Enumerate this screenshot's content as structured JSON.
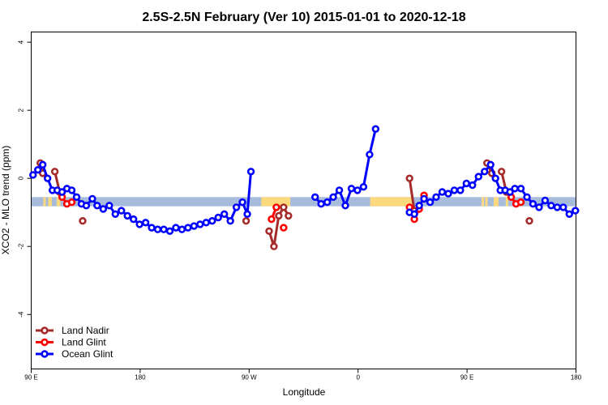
{
  "chart_data": {
    "type": "line",
    "title": "2.5S-2.5N February (Ver 10)   2015-01-01 to 2020-12-18",
    "xlabel": "Longitude",
    "ylabel": "XCO2 - MLO trend (ppm)",
    "xlim": [
      -90,
      360
    ],
    "ylim": [
      -5.6,
      4.3
    ],
    "x_ticks": [
      {
        "value": -90,
        "label": "90 E"
      },
      {
        "value": 0,
        "label": "180"
      },
      {
        "value": 90,
        "label": "90 W"
      },
      {
        "value": 180,
        "label": "0"
      },
      {
        "value": 270,
        "label": "90 E"
      },
      {
        "value": 360,
        "label": "180"
      }
    ],
    "y_ticks": [
      {
        "value": 4,
        "label": "4"
      },
      {
        "value": 2,
        "label": "2"
      },
      {
        "value": 0,
        "label": "0"
      },
      {
        "value": -2,
        "label": "-2"
      },
      {
        "value": -4,
        "label": "-4"
      }
    ],
    "land_band": {
      "y_range": [
        -0.82,
        -0.55
      ],
      "ocean_color": "#a7bcdd",
      "land_color": "#fcd97d",
      "land_segments": [
        [
          -80,
          -78
        ],
        [
          -76,
          -73
        ],
        [
          -69,
          -66
        ],
        [
          100,
          124
        ],
        [
          190,
          225
        ],
        [
          282,
          284
        ],
        [
          285,
          287
        ],
        [
          292,
          296
        ],
        [
          302,
          304
        ]
      ]
    },
    "series": [
      {
        "name": "Land Nadir",
        "color": "#a52a2a",
        "segments": [
          [
            [
              -82.5,
              0.45
            ],
            [
              -80.5,
              0.15
            ]
          ],
          [
            [
              -70.5,
              0.2
            ],
            [
              -66.5,
              -0.4
            ]
          ],
          [
            [
              -47.5,
              -1.25
            ]
          ],
          [
            [
              87.5,
              -1.25
            ]
          ],
          [
            [
              106.5,
              -1.55
            ],
            [
              110.5,
              -2.0
            ],
            [
              114.5,
              -1.1
            ],
            [
              118.5,
              -0.85
            ],
            [
              122.5,
              -1.1
            ]
          ],
          [
            [
              222.5,
              0.0
            ],
            [
              226.5,
              -0.95
            ]
          ],
          [
            [
              286.5,
              0.45
            ],
            [
              290.5,
              0.15
            ]
          ],
          [
            [
              298.5,
              0.2
            ],
            [
              302.5,
              -0.4
            ]
          ],
          [
            [
              321.5,
              -1.25
            ]
          ]
        ]
      },
      {
        "name": "Land Glint",
        "color": "#ff0000",
        "segments": [
          [
            [
              -64.5,
              -0.55
            ],
            [
              -60.5,
              -0.75
            ],
            [
              -56.5,
              -0.7
            ]
          ],
          [
            [
              108.5,
              -1.2
            ],
            [
              112.5,
              -0.85
            ]
          ],
          [
            [
              118.5,
              -1.45
            ]
          ],
          [
            [
              222.5,
              -0.85
            ],
            [
              226.5,
              -1.2
            ],
            [
              230.5,
              -0.9
            ],
            [
              234.5,
              -0.5
            ]
          ],
          [
            [
              306.5,
              -0.55
            ],
            [
              310.5,
              -0.75
            ],
            [
              314.5,
              -0.7
            ]
          ]
        ]
      },
      {
        "name": "Ocean Glint",
        "color": "#0000ff",
        "segments": [
          [
            [
              -88.5,
              0.1
            ],
            [
              -84.5,
              0.25
            ],
            [
              -80.5,
              0.4
            ],
            [
              -76.5,
              0.0
            ],
            [
              -72.5,
              -0.35
            ],
            [
              -68.5,
              -0.35
            ],
            [
              -64.5,
              -0.4
            ],
            [
              -60.5,
              -0.3
            ],
            [
              -56.5,
              -0.35
            ],
            [
              -52.5,
              -0.55
            ],
            [
              -48.5,
              -0.75
            ],
            [
              -44.5,
              -0.8
            ],
            [
              -39.5,
              -0.6
            ],
            [
              -35.5,
              -0.8
            ],
            [
              -30.5,
              -0.9
            ],
            [
              -25.5,
              -0.8
            ],
            [
              -20.5,
              -1.05
            ],
            [
              -15.5,
              -0.95
            ],
            [
              -10.5,
              -1.1
            ],
            [
              -5.5,
              -1.2
            ],
            [
              -0.5,
              -1.35
            ],
            [
              4.5,
              -1.3
            ],
            [
              9.5,
              -1.45
            ],
            [
              14.5,
              -1.5
            ],
            [
              19.5,
              -1.5
            ],
            [
              24.5,
              -1.55
            ],
            [
              29.5,
              -1.45
            ],
            [
              34.5,
              -1.5
            ],
            [
              39.5,
              -1.45
            ],
            [
              44.5,
              -1.4
            ],
            [
              49.5,
              -1.35
            ],
            [
              54.5,
              -1.3
            ],
            [
              59.5,
              -1.25
            ],
            [
              64.5,
              -1.15
            ],
            [
              69.5,
              -1.05
            ],
            [
              74.5,
              -1.25
            ],
            [
              79.5,
              -0.85
            ],
            [
              84.5,
              -0.7
            ],
            [
              88.5,
              -1.05
            ],
            [
              91.5,
              0.2
            ]
          ],
          [
            [
              144.5,
              -0.55
            ],
            [
              149.5,
              -0.75
            ],
            [
              154.5,
              -0.7
            ],
            [
              159.5,
              -0.55
            ],
            [
              164.5,
              -0.35
            ],
            [
              169.5,
              -0.8
            ],
            [
              174.5,
              -0.3
            ],
            [
              179.5,
              -0.35
            ],
            [
              184.5,
              -0.25
            ],
            [
              189.5,
              0.7
            ],
            [
              194.5,
              1.45
            ]
          ],
          [
            [
              222.5,
              -1.0
            ],
            [
              226.5,
              -1.05
            ],
            [
              230.5,
              -0.8
            ],
            [
              234.5,
              -0.6
            ],
            [
              239.5,
              -0.7
            ],
            [
              244.5,
              -0.55
            ],
            [
              249.5,
              -0.4
            ],
            [
              254.5,
              -0.45
            ],
            [
              259.5,
              -0.35
            ],
            [
              264.5,
              -0.35
            ],
            [
              269.5,
              -0.15
            ],
            [
              274.5,
              -0.2
            ],
            [
              279.5,
              0.05
            ],
            [
              284.5,
              0.2
            ],
            [
              289.5,
              0.4
            ],
            [
              293.5,
              0.0
            ],
            [
              297.5,
              -0.35
            ],
            [
              301.5,
              -0.35
            ],
            [
              305.5,
              -0.4
            ],
            [
              309.5,
              -0.3
            ],
            [
              314.5,
              -0.3
            ],
            [
              319.5,
              -0.55
            ],
            [
              324.5,
              -0.75
            ],
            [
              329.5,
              -0.85
            ],
            [
              334.5,
              -0.65
            ],
            [
              339.5,
              -0.8
            ],
            [
              344.5,
              -0.85
            ],
            [
              349.5,
              -0.85
            ],
            [
              354.5,
              -1.05
            ],
            [
              359.5,
              -0.95
            ]
          ]
        ]
      }
    ],
    "legend": {
      "position": "bottom-left"
    },
    "grid": false
  }
}
